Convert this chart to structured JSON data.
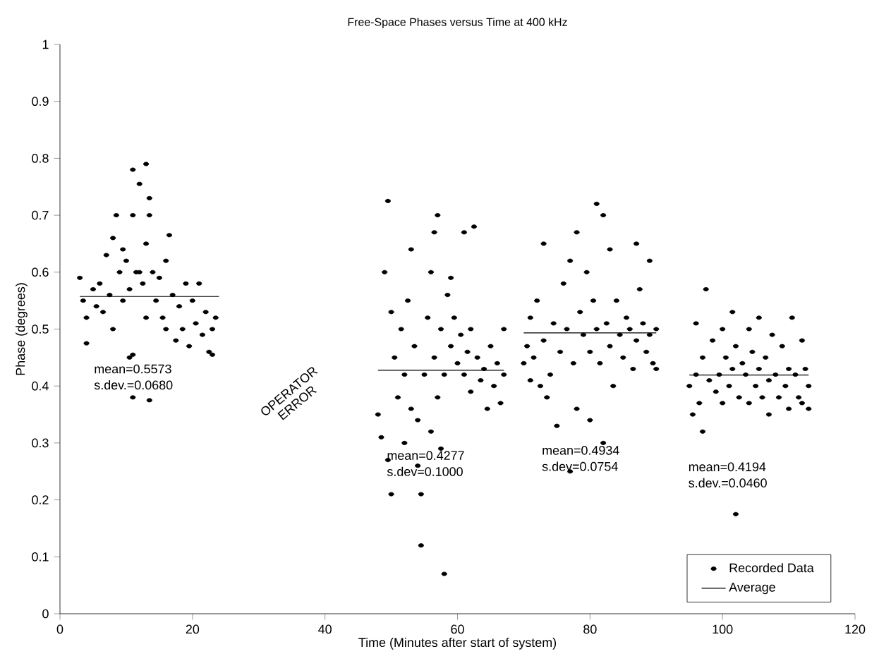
{
  "chart_data": {
    "type": "scatter",
    "title": "Free-Space Phases versus Time at 400 kHz",
    "xlabel": "Time (Minutes after start of system)",
    "ylabel": "Phase (degrees)",
    "xlim": [
      0,
      120
    ],
    "ylim": [
      0,
      1
    ],
    "xticks": [
      0,
      20,
      40,
      60,
      80,
      100,
      120
    ],
    "yticks": [
      0,
      0.1,
      0.2,
      0.3,
      0.4,
      0.5,
      0.6,
      0.7,
      0.8,
      0.9,
      1
    ],
    "legend": "bottom right",
    "annotations": [
      "mean=0.5573",
      "s.dev.=0.0680",
      "mean=0.4277",
      "s.dev=0.1000",
      "mean=0.4934",
      "s.dev=0.0754",
      "mean=0.4194",
      "s.dev.=0.0460",
      "OPERATOR ERROR"
    ],
    "series": [
      {
        "name": "Recorded Data",
        "type": "scatter",
        "marker": "circle",
        "color": "#000000",
        "x": [
          3,
          3.5,
          4,
          4,
          5,
          5.5,
          6,
          6.5,
          7,
          7.5,
          8,
          8,
          8.5,
          9,
          9.5,
          9.5,
          10,
          10.5,
          10.5,
          11,
          11,
          11.5,
          12,
          12,
          12.5,
          13,
          13,
          13,
          13.5,
          13.5,
          14,
          14.5,
          15,
          15.5,
          16,
          16,
          16.5,
          17,
          17.5,
          18,
          18.5,
          19,
          19.5,
          20,
          20.5,
          21,
          21.5,
          22,
          22.5,
          23,
          23.5,
          11,
          13.5,
          11,
          23,
          49.5,
          49,
          48,
          48.5,
          49.5,
          50,
          50,
          50.5,
          51,
          51.5,
          52,
          52,
          52.5,
          53,
          53,
          53.5,
          54,
          54,
          54.5,
          54.5,
          55,
          55.5,
          56,
          56,
          56.5,
          56.5,
          57,
          57,
          57.5,
          57.5,
          58,
          58,
          58.5,
          59,
          59,
          59.5,
          60,
          60.5,
          61,
          61,
          61.5,
          62,
          62,
          62.5,
          63,
          63.5,
          64,
          64.5,
          65,
          65.5,
          66,
          66.5,
          67,
          67,
          70,
          70.5,
          71,
          71,
          71.5,
          72,
          72.5,
          73,
          73,
          73.5,
          74,
          74.5,
          75,
          75.5,
          76,
          76.5,
          77,
          77,
          77.5,
          78,
          78,
          78.5,
          79,
          79.5,
          80,
          80,
          80.5,
          81,
          81,
          81.5,
          82,
          82,
          82.5,
          83,
          83,
          83.5,
          84,
          84.5,
          85,
          85.5,
          86,
          86.5,
          87,
          87,
          87.5,
          88,
          88.5,
          89,
          89,
          89.5,
          90,
          90,
          95,
          95.5,
          96,
          96,
          96.5,
          97,
          97,
          97.5,
          98,
          98.5,
          99,
          99.5,
          100,
          100,
          100.5,
          101,
          101.5,
          101.5,
          102,
          102,
          102.5,
          103,
          103.5,
          104,
          104,
          104.5,
          105,
          105.5,
          105.5,
          106,
          106.5,
          107,
          107,
          107.5,
          108,
          108.5,
          109,
          109.5,
          110,
          110,
          110.5,
          111,
          111.5,
          112,
          112,
          112.5,
          113,
          113
        ],
        "values": [
          0.59,
          0.55,
          0.52,
          0.475,
          0.57,
          0.54,
          0.58,
          0.53,
          0.63,
          0.56,
          0.66,
          0.5,
          0.7,
          0.6,
          0.64,
          0.55,
          0.62,
          0.57,
          0.45,
          0.78,
          0.7,
          0.6,
          0.755,
          0.6,
          0.58,
          0.79,
          0.65,
          0.52,
          0.73,
          0.7,
          0.6,
          0.55,
          0.59,
          0.52,
          0.62,
          0.5,
          0.665,
          0.56,
          0.48,
          0.54,
          0.5,
          0.58,
          0.47,
          0.55,
          0.51,
          0.58,
          0.49,
          0.53,
          0.46,
          0.5,
          0.52,
          0.38,
          0.375,
          0.455,
          0.455,
          0.725,
          0.6,
          0.35,
          0.31,
          0.27,
          0.21,
          0.53,
          0.45,
          0.38,
          0.5,
          0.42,
          0.3,
          0.55,
          0.64,
          0.36,
          0.47,
          0.34,
          0.26,
          0.21,
          0.12,
          0.42,
          0.52,
          0.6,
          0.32,
          0.67,
          0.45,
          0.7,
          0.38,
          0.5,
          0.29,
          0.07,
          0.42,
          0.56,
          0.59,
          0.47,
          0.52,
          0.44,
          0.49,
          0.67,
          0.42,
          0.46,
          0.39,
          0.5,
          0.68,
          0.45,
          0.41,
          0.43,
          0.36,
          0.47,
          0.4,
          0.44,
          0.37,
          0.5,
          0.42,
          0.44,
          0.47,
          0.41,
          0.52,
          0.45,
          0.55,
          0.4,
          0.65,
          0.48,
          0.38,
          0.42,
          0.51,
          0.33,
          0.46,
          0.58,
          0.5,
          0.25,
          0.62,
          0.44,
          0.67,
          0.36,
          0.53,
          0.49,
          0.6,
          0.46,
          0.34,
          0.55,
          0.72,
          0.5,
          0.44,
          0.7,
          0.3,
          0.51,
          0.64,
          0.47,
          0.4,
          0.55,
          0.49,
          0.45,
          0.52,
          0.5,
          0.43,
          0.65,
          0.48,
          0.57,
          0.51,
          0.46,
          0.62,
          0.49,
          0.44,
          0.5,
          0.43,
          0.4,
          0.35,
          0.51,
          0.42,
          0.37,
          0.45,
          0.32,
          0.57,
          0.41,
          0.48,
          0.39,
          0.42,
          0.5,
          0.37,
          0.45,
          0.4,
          0.53,
          0.43,
          0.47,
          0.175,
          0.38,
          0.44,
          0.42,
          0.5,
          0.37,
          0.46,
          0.4,
          0.52,
          0.43,
          0.38,
          0.45,
          0.41,
          0.35,
          0.49,
          0.42,
          0.38,
          0.47,
          0.4,
          0.43,
          0.36,
          0.52,
          0.42,
          0.38,
          0.48,
          0.37,
          0.43,
          0.4,
          0.36
        ]
      },
      {
        "name": "Average",
        "type": "line",
        "marker": "none",
        "line_style": "solid",
        "color": "#000000",
        "x": [
          3,
          24,
          36,
          48,
          67,
          68.5,
          70,
          90,
          92.5,
          95,
          113
        ],
        "values": [
          0.5573,
          0.5573,
          null,
          0.4277,
          0.4277,
          null,
          0.4934,
          0.4934,
          null,
          0.4194,
          0.4194
        ]
      }
    ]
  }
}
